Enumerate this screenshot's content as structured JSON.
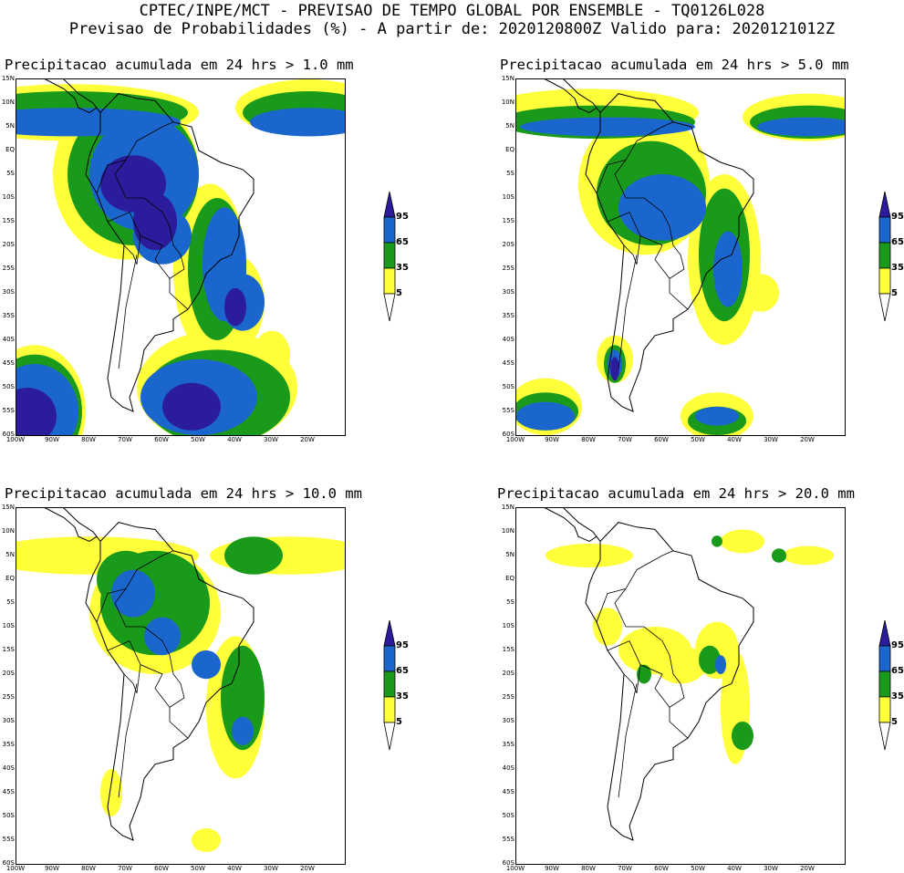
{
  "header": {
    "line1": "CPTEC/INPE/MCT - PREVISAO DE TEMPO GLOBAL POR ENSEMBLE - TQ0126L028",
    "line2": "Previsao de Probabilidades (%) -  A partir de: 2020120800Z  Valido para: 2020121012Z"
  },
  "axes": {
    "lat_labels": [
      "15N",
      "10N",
      "5N",
      "EQ",
      "5S",
      "10S",
      "15S",
      "20S",
      "25S",
      "30S",
      "35S",
      "40S",
      "45S",
      "50S",
      "55S",
      "60S"
    ],
    "lon_labels": [
      "100W",
      "90W",
      "80W",
      "70W",
      "60W",
      "50W",
      "40W",
      "30W",
      "20W"
    ],
    "lat_range": [
      15,
      -60
    ],
    "lon_range": [
      -100,
      -10
    ]
  },
  "legend": {
    "levels": [
      "95",
      "65",
      "35",
      "5"
    ],
    "colors": [
      "#2b1c9c",
      "#1a66cc",
      "#1a9a1a",
      "#ffff3a",
      "#ffffff"
    ]
  },
  "panels": [
    {
      "title": "Precipitacao acumulada em 24 hrs > 1.0 mm",
      "threshold_mm": 1.0
    },
    {
      "title": "Precipitacao acumulada em 24 hrs > 5.0 mm",
      "threshold_mm": 5.0
    },
    {
      "title": "Precipitacao acumulada em 24 hrs > 10.0 mm",
      "threshold_mm": 10.0
    },
    {
      "title": "Precipitacao acumulada em 24 hrs > 20.0 mm",
      "threshold_mm": 20.0
    }
  ]
}
